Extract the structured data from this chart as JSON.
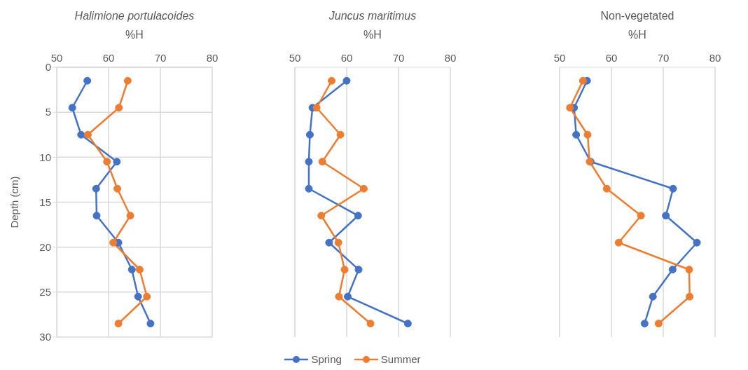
{
  "chart_data": [
    {
      "type": "line",
      "title": "Halimione portulacoides",
      "xlabel": "%H",
      "ylabel": "Depth (cm)",
      "orientation": "horizontal",
      "x": [
        1.5,
        4.5,
        7.5,
        10.5,
        13.5,
        16.5,
        19.5,
        22.5,
        25.5,
        28.5
      ],
      "xlim": [
        50,
        80
      ],
      "xticks": [
        50,
        60,
        70,
        80
      ],
      "ylim": [
        30,
        0
      ],
      "yticks": [
        0,
        5,
        10,
        15,
        20,
        25,
        30
      ],
      "grid": true,
      "marker": "circle",
      "line_style": "solid",
      "series": [
        {
          "color": "#4472c4",
          "values": [
            55.9,
            53.0,
            54.7,
            61.6,
            57.6,
            57.7,
            61.9,
            64.5,
            65.7,
            68.1
          ]
        },
        {
          "color": "#ed7d31",
          "values": [
            63.7,
            62.0,
            56.0,
            59.7,
            61.7,
            64.2,
            60.9,
            66.0,
            67.4,
            61.9
          ]
        }
      ]
    },
    {
      "type": "line",
      "title": "Juncus maritimus",
      "xlabel": "%H",
      "orientation": "horizontal",
      "x": [
        1.5,
        4.5,
        7.5,
        10.5,
        13.5,
        16.5,
        19.5,
        22.5,
        25.5,
        28.5
      ],
      "xlim": [
        50,
        80
      ],
      "xticks": [
        50,
        60,
        70,
        80
      ],
      "ylim": [
        30,
        0
      ],
      "yticks": [
        0,
        5,
        10,
        15,
        20,
        25,
        30
      ],
      "tick_labels": "x",
      "grid": true,
      "marker": "circle",
      "line_style": "solid",
      "legend": "bottom",
      "series": [
        {
          "name": "Spring",
          "color": "#4472c4",
          "values": [
            60.0,
            53.4,
            52.9,
            52.7,
            52.7,
            62.2,
            56.6,
            62.3,
            60.2,
            71.8
          ]
        },
        {
          "name": "Summer",
          "color": "#ed7d31",
          "values": [
            57.1,
            54.2,
            58.8,
            55.3,
            63.3,
            55.1,
            58.4,
            59.6,
            58.5,
            64.6
          ]
        }
      ]
    },
    {
      "type": "line",
      "title": "Non-vegetated",
      "xlabel": "%H",
      "orientation": "horizontal",
      "x": [
        1.5,
        4.5,
        7.5,
        10.5,
        13.5,
        16.5,
        19.5,
        22.5,
        25.5,
        28.5
      ],
      "xlim": [
        50,
        80
      ],
      "xticks": [
        50,
        60,
        70,
        80
      ],
      "ylim": [
        30,
        0
      ],
      "yticks": [
        0,
        5,
        10,
        15,
        20,
        25,
        30
      ],
      "tick_labels": "x",
      "grid": true,
      "marker": "circle",
      "line_style": "solid",
      "series": [
        {
          "color": "#4472c4",
          "values": [
            55.3,
            52.8,
            53.2,
            56.0,
            71.9,
            70.5,
            76.5,
            71.8,
            68.0,
            66.4
          ]
        },
        {
          "color": "#ed7d31",
          "values": [
            54.5,
            52.0,
            55.4,
            55.8,
            59.1,
            65.7,
            61.4,
            75.0,
            75.1,
            69.1
          ]
        }
      ]
    }
  ]
}
